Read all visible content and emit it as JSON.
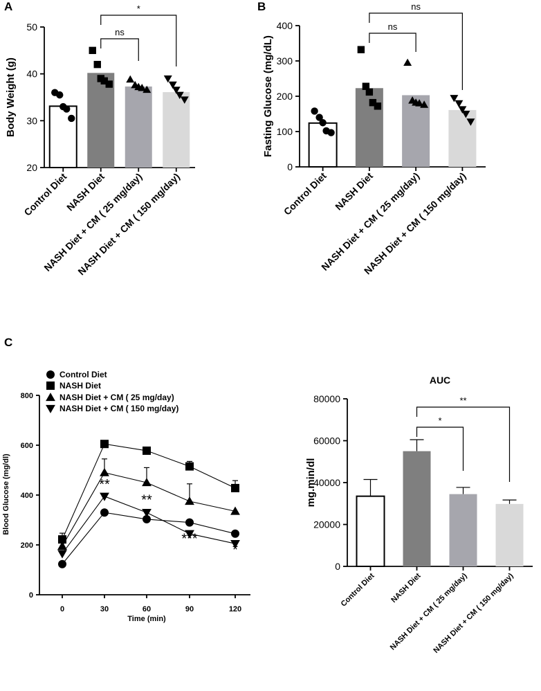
{
  "colors": {
    "control": "#ffffff",
    "nash": "#7f7f7f",
    "cm25": "#a6a6ad",
    "cm150": "#d9d9d9",
    "ink": "#000000"
  },
  "chart_data": [
    {
      "panel": "A",
      "type": "bar",
      "ylabel": "Body  Weight (g)",
      "ylim": [
        20,
        50
      ],
      "yticks": [
        "20",
        "30",
        "40",
        "50"
      ],
      "categories": [
        "Control Diet",
        "NASH Diet",
        "NASH Diet + CM ( 25 mg/day)",
        "NASH Diet + CM ( 150 mg/day)"
      ],
      "values": [
        33.1,
        40.2,
        37.3,
        36.1
      ],
      "markers": [
        "circle",
        "square",
        "triangle",
        "triangle-down"
      ],
      "points": [
        [
          36,
          35.5,
          33,
          32.5,
          30.5
        ],
        [
          45,
          42,
          39,
          38.5,
          37.8
        ],
        [
          38.8,
          37.6,
          37.2,
          37,
          36.6
        ],
        [
          39,
          37.7,
          36.6,
          35.5,
          34.5
        ]
      ],
      "comparisons": [
        {
          "from": 1,
          "to": 2,
          "label": "ns"
        },
        {
          "from": 1,
          "to": 3,
          "label": "*"
        }
      ]
    },
    {
      "panel": "B",
      "type": "bar",
      "ylabel": "Fasting Glucose (mg/dL)",
      "ylim": [
        0,
        400
      ],
      "yticks": [
        "0",
        "100",
        "200",
        "300",
        "400"
      ],
      "categories": [
        "Control Diet",
        "NASH Diet",
        "NASH Diet + CM ( 25 mg/day)",
        "NASH Diet + CM ( 150 mg/day)"
      ],
      "values": [
        124,
        223,
        203,
        161
      ],
      "markers": [
        "circle",
        "square",
        "triangle",
        "triangle-down"
      ],
      "points": [
        [
          158,
          140,
          125,
          102,
          97
        ],
        [
          332,
          228,
          212,
          182,
          172
        ],
        [
          295,
          188,
          182,
          180,
          176
        ],
        [
          195,
          180,
          163,
          150,
          128
        ]
      ],
      "comparisons": [
        {
          "from": 1,
          "to": 2,
          "label": "ns"
        },
        {
          "from": 1,
          "to": 3,
          "label": "ns"
        }
      ]
    },
    {
      "panel": "C",
      "type": "line",
      "xlabel": "Time (min)",
      "ylabel": "Blood Glucose (mg/dl)",
      "x": [
        0,
        30,
        60,
        90,
        120
      ],
      "xticks": [
        "0",
        "30",
        "60",
        "90",
        "120"
      ],
      "ylim": [
        0,
        800
      ],
      "yticks": [
        "0",
        "200",
        "400",
        "600",
        "800"
      ],
      "series": [
        {
          "name": "Control Diet",
          "marker": "circle",
          "values": [
            123,
            330,
            303,
            290,
            245
          ]
        },
        {
          "name": "NASH Diet",
          "marker": "square",
          "values": [
            222,
            605,
            578,
            515,
            428
          ],
          "err_up": [
            25,
            0,
            0,
            20,
            30
          ]
        },
        {
          "name": "NASH Diet + CM ( 25 mg/day)",
          "marker": "triangle",
          "values": [
            195,
            490,
            450,
            375,
            335
          ],
          "err_up": [
            20,
            55,
            60,
            70,
            0
          ]
        },
        {
          "name": "NASH Diet + CM ( 150 mg/day)",
          "marker": "triangle-down",
          "values": [
            165,
            395,
            330,
            245,
            205
          ]
        }
      ],
      "annotations": [
        {
          "x": 30,
          "y": 425,
          "label": "**"
        },
        {
          "x": 60,
          "y": 362,
          "label": "**"
        },
        {
          "x": 90,
          "y": 207,
          "label": "***"
        },
        {
          "x": 120,
          "y": 163,
          "label": "*"
        }
      ]
    },
    {
      "panel": "AUC",
      "type": "bar",
      "title": "AUC",
      "ylabel": "mg.min/dl",
      "ylim": [
        0,
        80000
      ],
      "yticks": [
        "0",
        "20000",
        "40000",
        "60000",
        "80000"
      ],
      "categories": [
        "Control Diet",
        "NASH Diet",
        "NASH Diet + CM ( 25 mg/day)",
        "NASH Diet + CM ( 150 mg/day)"
      ],
      "values": [
        33500,
        55000,
        34500,
        29800
      ],
      "err_up": [
        8000,
        5500,
        3200,
        1900
      ],
      "comparisons": [
        {
          "from": 1,
          "to": 2,
          "label": "*"
        },
        {
          "from": 1,
          "to": 3,
          "label": "**"
        }
      ]
    }
  ]
}
